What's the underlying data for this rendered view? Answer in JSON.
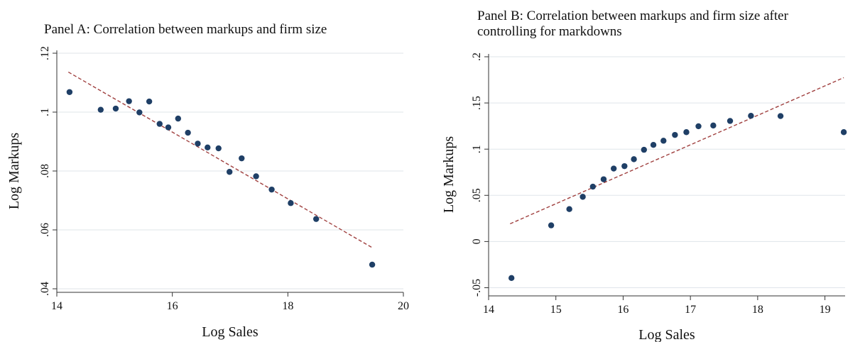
{
  "panels": {
    "a": {
      "title": "Panel A: Correlation between markups and firm size"
    },
    "b": {
      "title_line1": "Panel B: Correlation between markups and firm size after",
      "title_line2": "controlling for markdowns"
    }
  },
  "colors": {
    "marker": "#1f3f66",
    "fit_line": "#a0403f",
    "grid": "#dfe5ea",
    "axis": "#333333"
  },
  "chart_data": [
    {
      "type": "scatter",
      "title": "Panel A: Correlation between markups and firm size",
      "xlabel": "Log Sales",
      "ylabel": "Log Markups",
      "xlim": [
        14,
        20
      ],
      "ylim": [
        0.04,
        0.12
      ],
      "xticks": [
        14,
        16,
        18,
        20
      ],
      "xtick_labels": [
        "14",
        "16",
        "18",
        "20"
      ],
      "yticks": [
        0.04,
        0.06,
        0.08,
        0.1,
        0.12
      ],
      "ytick_labels": [
        ".04",
        ".06",
        ".08",
        ".1",
        ".12"
      ],
      "grid": true,
      "x": [
        14.22,
        14.76,
        15.02,
        15.25,
        15.43,
        15.6,
        15.78,
        15.93,
        16.1,
        16.27,
        16.44,
        16.61,
        16.8,
        16.99,
        17.2,
        17.45,
        17.72,
        18.05,
        18.49,
        19.46
      ],
      "y": [
        0.1068,
        0.1008,
        0.1012,
        0.1037,
        0.0999,
        0.1036,
        0.096,
        0.0948,
        0.0978,
        0.093,
        0.0893,
        0.088,
        0.0877,
        0.0797,
        0.0843,
        0.0782,
        0.0737,
        0.0691,
        0.0637,
        0.0482
      ],
      "fit_line": {
        "x": [
          14.2,
          19.45
        ],
        "y": [
          0.1136,
          0.0541
        ]
      }
    },
    {
      "type": "scatter",
      "title": "Panel B: Correlation between markups and firm size after controlling for markdowns",
      "xlabel": "Log Sales",
      "ylabel": "Log Markups",
      "xlim": [
        14,
        19.3
      ],
      "ylim": [
        -0.055,
        0.2
      ],
      "xticks": [
        14,
        15,
        16,
        17,
        18,
        19
      ],
      "xtick_labels": [
        "14",
        "15",
        "16",
        "17",
        "18",
        "19"
      ],
      "yticks": [
        -0.05,
        0,
        0.05,
        0.1,
        0.15,
        0.2
      ],
      "ytick_labels": [
        "-.05",
        "0",
        ".05",
        ".1",
        ".15",
        ".2"
      ],
      "grid": true,
      "x": [
        14.34,
        14.93,
        15.2,
        15.4,
        15.55,
        15.71,
        15.86,
        16.02,
        16.16,
        16.31,
        16.45,
        16.6,
        16.77,
        16.94,
        17.12,
        17.34,
        17.59,
        17.9,
        18.34,
        19.28
      ],
      "y": [
        -0.0395,
        0.0175,
        0.0351,
        0.0484,
        0.0594,
        0.0674,
        0.079,
        0.0816,
        0.0891,
        0.0993,
        0.1046,
        0.1091,
        0.1154,
        0.1184,
        0.1248,
        0.1256,
        0.1305,
        0.1361,
        0.1358,
        0.1184
      ],
      "fit_line": {
        "x": [
          14.32,
          19.28
        ],
        "y": [
          0.0192,
          0.1774
        ]
      }
    }
  ]
}
